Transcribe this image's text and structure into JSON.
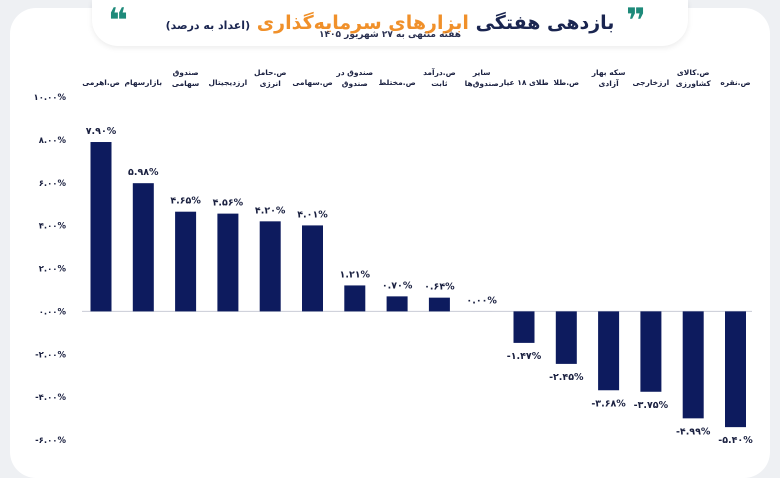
{
  "header": {
    "title_prefix": "بازدهی هفتگی",
    "title_accent": "ابزارهای سرمایه‌گذاری",
    "title_suffix": "(اعداد به درصد)",
    "quote_open": "❝",
    "quote_close": "❞",
    "subtitle": "هفته منتهی به ۲۷ شهریور ۱۴۰۵"
  },
  "colors": {
    "bar": "#0d1b5e",
    "title_accent": "#f0902a",
    "quote": "#1e8a7a"
  },
  "chart_data": {
    "type": "bar",
    "categories": [
      [
        "ص.اهرمی"
      ],
      [
        "بازارسهام"
      ],
      [
        "صندوق",
        "سهامی"
      ],
      [
        "ارزدیجیتال"
      ],
      [
        "ص.حامل",
        "انرژی"
      ],
      [
        "ص.سهامی"
      ],
      [
        "صندوق در",
        "صندوق"
      ],
      [
        "ص.مختلط"
      ],
      [
        "ص.درآمد",
        "ثابت"
      ],
      [
        "سایر",
        "صندوق‌ها"
      ],
      [
        "طلای ۱۸ عیار"
      ],
      [
        "ص.طلا"
      ],
      [
        "سکه بهار",
        "آزادی"
      ],
      [
        "ارزخارجی"
      ],
      [
        "ص.کالای",
        "کشاورزی"
      ],
      [
        "ص.نقره"
      ]
    ],
    "values": [
      7.9,
      5.98,
      4.65,
      4.56,
      4.2,
      4.01,
      1.21,
      0.7,
      0.64,
      0.0,
      -1.47,
      -2.45,
      -3.68,
      -3.75,
      -4.99,
      -5.4
    ],
    "value_labels": [
      "۷.۹۰%",
      "۵.۹۸%",
      "۴.۶۵%",
      "۴.۵۶%",
      "۴.۲۰%",
      "۴.۰۱%",
      "۱.۲۱%",
      "۰.۷۰%",
      "۰.۶۴%",
      "۰.۰۰%",
      "-۱.۴۷%",
      "-۲.۴۵%",
      "-۳.۶۸%",
      "-۳.۷۵%",
      "-۴.۹۹%",
      "-۵.۴۰%"
    ],
    "y_ticks": [
      10,
      8,
      6,
      4,
      2,
      0,
      -2,
      -4,
      -6
    ],
    "y_tick_labels": [
      "۱۰.۰۰%",
      "۸.۰۰%",
      "۶.۰۰%",
      "۴.۰۰%",
      "۲.۰۰%",
      "۰.۰۰%",
      "-۲.۰۰%",
      "-۴.۰۰%",
      "-۶.۰۰%"
    ],
    "ylim": [
      -6,
      10
    ],
    "grid": false,
    "legend": "none"
  }
}
